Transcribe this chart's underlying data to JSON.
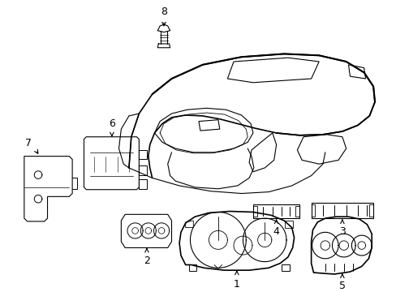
{
  "background_color": "#ffffff",
  "line_color": "#000000",
  "figsize": [
    4.89,
    3.6
  ],
  "dpi": 100,
  "label_fontsize": 9
}
